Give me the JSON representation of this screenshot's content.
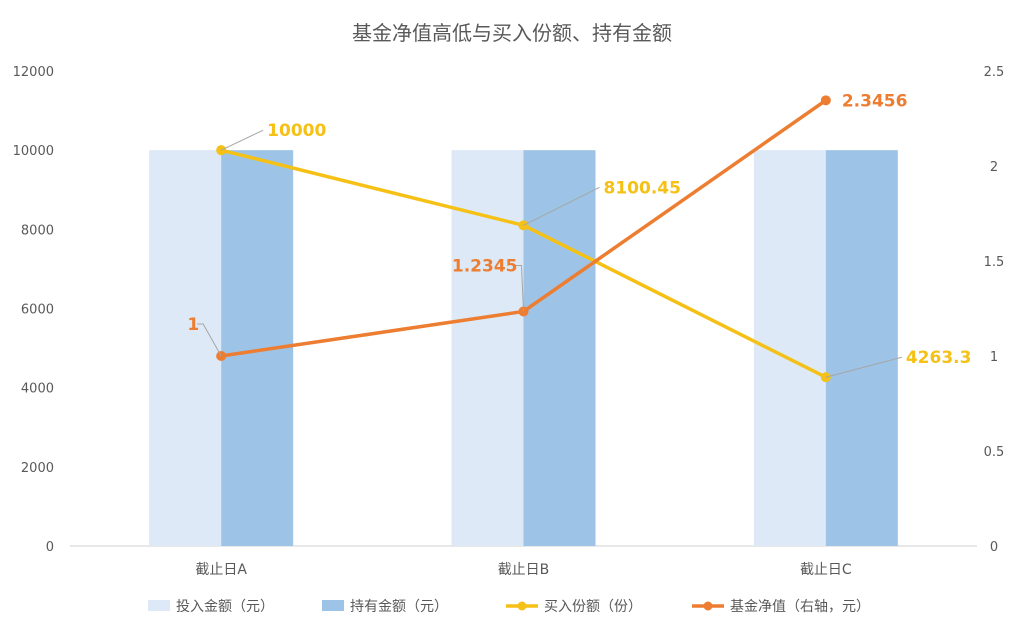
{
  "chart_data": {
    "type": "bar",
    "title": "基金净值高低与买入份额、持有金额",
    "categories": [
      "截止日A",
      "截止日B",
      "截止日C"
    ],
    "y_left": {
      "range": [
        0,
        12000
      ],
      "ticks": [
        "0",
        "2000",
        "4000",
        "6000",
        "8000",
        "10000",
        "12000"
      ]
    },
    "y_right": {
      "range": [
        0,
        2.5
      ],
      "ticks": [
        "0",
        "0.5",
        "1",
        "1.5",
        "2",
        "2.5"
      ]
    },
    "grid": false,
    "legend_position": "bottom",
    "series": [
      {
        "name": "投入金额（元）",
        "kind": "bar",
        "axis": "left",
        "color": "#dde9f6",
        "values": [
          10000,
          10000,
          10000
        ]
      },
      {
        "name": "持有金额（元）",
        "kind": "bar",
        "axis": "left",
        "color": "#9dc3e6",
        "values": [
          10000,
          10000,
          10000
        ]
      },
      {
        "name": "买入份额（份）",
        "kind": "line",
        "axis": "left",
        "color": "#f5c116",
        "values": [
          10000,
          8100.45,
          4263.3
        ],
        "labels": [
          "10000",
          "8100.45",
          "4263.3"
        ]
      },
      {
        "name": "基金净值（右轴，元）",
        "kind": "line",
        "axis": "right",
        "color": "#ed7d31",
        "values": [
          1,
          1.2345,
          2.3456
        ],
        "labels": [
          "1",
          "1.2345",
          "2.3456"
        ]
      }
    ]
  }
}
